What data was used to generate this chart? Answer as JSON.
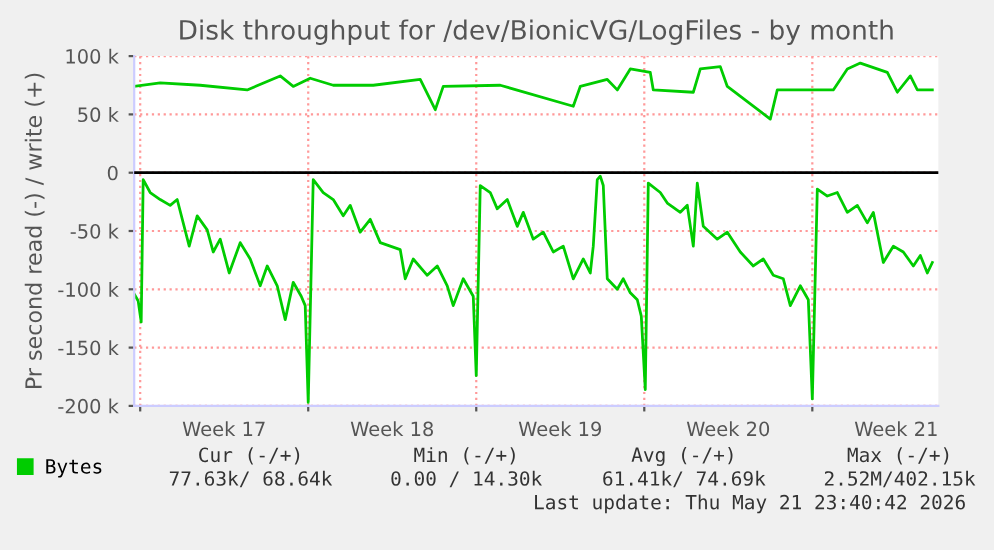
{
  "chart_data": {
    "type": "line",
    "title": "Disk throughput for /dev/BionicVG/LogFiles - by month",
    "ylabel": "Pr second read (-) / write (+)",
    "xlim": [
      "2026-04-18T18:00",
      "2026-05-22T06:00"
    ],
    "xticks": [
      {
        "value": "2026-04-19T00:00",
        "label": null
      },
      {
        "value": "2026-04-22T12:00",
        "label": "Week 17"
      },
      {
        "value": "2026-04-26T00:00",
        "label": null
      },
      {
        "value": "2026-04-29T12:00",
        "label": "Week 18"
      },
      {
        "value": "2026-05-03T00:00",
        "label": null
      },
      {
        "value": "2026-05-06T12:00",
        "label": "Week 19"
      },
      {
        "value": "2026-05-10T00:00",
        "label": null
      },
      {
        "value": "2026-05-13T12:00",
        "label": "Week 20"
      },
      {
        "value": "2026-05-17T00:00",
        "label": null
      },
      {
        "value": "2026-05-20T12:00",
        "label": "Week 21"
      }
    ],
    "ylim": [
      -200,
      100
    ],
    "yticks": [
      {
        "value": -200,
        "label": "-200 k"
      },
      {
        "value": -150,
        "label": "-150 k"
      },
      {
        "value": -100,
        "label": "-100 k"
      },
      {
        "value": -50,
        "label": "-50 k"
      },
      0,
      {
        "value": 50,
        "label": "50 k"
      },
      {
        "value": 100,
        "label": "100 k"
      }
    ],
    "grid": true,
    "legend": "bottom left",
    "ref_lines": [
      {
        "axis": "y",
        "value": 0,
        "color": "#000000"
      }
    ],
    "series": [
      {
        "name": "Bytes",
        "color": "#00cc00",
        "x": [
          "2026-04-18T18:00",
          "2026-04-19T20:00",
          "2026-04-21T12:00",
          "2026-04-23T11:00",
          "2026-04-24T20:00",
          "2026-04-25T09:00",
          "2026-04-26T02:00",
          "2026-04-27T01:00",
          "2026-04-28T17:00",
          "2026-04-30T16:00",
          "2026-05-01T07:00",
          "2026-05-01T15:00",
          "2026-05-04T00:00",
          "2026-05-07T01:00",
          "2026-05-07T08:00",
          "2026-05-08T11:00",
          "2026-05-08T21:00",
          "2026-05-09T10:00",
          "2026-05-10T06:00",
          "2026-05-10T09:00",
          "2026-05-12T01:00",
          "2026-05-12T08:00",
          "2026-05-13T04:00",
          "2026-05-13T11:00",
          "2026-05-15T06:00",
          "2026-05-15T13:00",
          "2026-05-17T21:00",
          "2026-05-18T11:00",
          "2026-05-19T00:00",
          "2026-05-20T03:00",
          "2026-05-20T13:00",
          "2026-05-21T02:00",
          "2026-05-21T09:00",
          "2026-05-22T00:00"
        ],
        "values": [
          74,
          77,
          75,
          71,
          83,
          74,
          81,
          75,
          75,
          80,
          54,
          74,
          75,
          57,
          74,
          80,
          71,
          89,
          86,
          71,
          69,
          89,
          91,
          74,
          46,
          71,
          71,
          89,
          94,
          86,
          69,
          83,
          71,
          71
        ]
      },
      {
        "color": "#00cc00",
        "x": [
          "2026-04-18T18:00",
          "2026-04-18T22:00",
          "2026-04-19T01:00",
          "2026-04-19T03:00",
          "2026-04-19T10:00",
          "2026-04-19T20:00",
          "2026-04-20T06:00",
          "2026-04-20T13:00",
          "2026-04-21T01:00",
          "2026-04-21T09:00",
          "2026-04-21T19:00",
          "2026-04-22T01:00",
          "2026-04-22T08:00",
          "2026-04-22T17:00",
          "2026-04-23T04:00",
          "2026-04-23T14:00",
          "2026-04-24T00:00",
          "2026-04-24T07:00",
          "2026-04-24T17:00",
          "2026-04-25T01:00",
          "2026-04-25T09:00",
          "2026-04-25T17:00",
          "2026-04-25T21:00",
          "2026-04-26T00:00",
          "2026-04-26T05:00",
          "2026-04-26T15:00",
          "2026-04-27T01:00",
          "2026-04-27T11:00",
          "2026-04-27T18:00",
          "2026-04-28T04:00",
          "2026-04-28T14:00",
          "2026-04-29T00:00",
          "2026-04-29T10:00",
          "2026-04-29T20:00",
          "2026-04-30T01:00",
          "2026-04-30T09:00",
          "2026-04-30T23:00",
          "2026-05-01T09:00",
          "2026-05-01T19:00",
          "2026-05-02T01:00",
          "2026-05-02T11:00",
          "2026-05-02T21:00",
          "2026-05-03T00:00",
          "2026-05-03T04:00",
          "2026-05-03T14:00",
          "2026-05-03T21:00",
          "2026-05-04T07:00",
          "2026-05-04T17:00",
          "2026-05-04T23:00",
          "2026-05-05T09:00",
          "2026-05-05T19:00",
          "2026-05-06T05:00",
          "2026-05-06T15:00",
          "2026-05-07T01:00",
          "2026-05-07T11:00",
          "2026-05-07T18:00",
          "2026-05-07T21:00",
          "2026-05-08T01:00",
          "2026-05-08T04:00",
          "2026-05-08T07:00",
          "2026-05-08T11:00",
          "2026-05-08T21:00",
          "2026-05-09T03:00",
          "2026-05-09T10:00",
          "2026-05-09T17:00",
          "2026-05-09T21:00",
          "2026-05-10T01:00",
          "2026-05-10T04:00",
          "2026-05-10T16:00",
          "2026-05-10T23:00",
          "2026-05-11T12:00",
          "2026-05-11T19:00",
          "2026-05-12T01:00",
          "2026-05-12T05:00",
          "2026-05-12T11:00",
          "2026-05-13T01:00",
          "2026-05-13T11:00",
          "2026-05-14T00:00",
          "2026-05-14T13:00",
          "2026-05-14T23:00",
          "2026-05-15T09:00",
          "2026-05-15T19:00",
          "2026-05-16T02:00",
          "2026-05-16T12:00",
          "2026-05-16T20:00",
          "2026-05-17T00:00",
          "2026-05-17T05:00",
          "2026-05-17T15:00",
          "2026-05-18T01:00",
          "2026-05-18T11:00",
          "2026-05-18T21:00",
          "2026-05-19T07:00",
          "2026-05-19T13:00",
          "2026-05-19T23:00",
          "2026-05-20T09:00",
          "2026-05-20T19:00",
          "2026-05-21T05:00",
          "2026-05-21T12:00",
          "2026-05-21T19:00",
          "2026-05-22T00:00"
        ],
        "values": [
          -104,
          -110,
          -128,
          -6,
          -17,
          -23,
          -28,
          -23,
          -63,
          -37,
          -49,
          -68,
          -57,
          -86,
          -60,
          -74,
          -97,
          -80,
          -97,
          -126,
          -94,
          -106,
          -114,
          -197,
          -6,
          -17,
          -23,
          -37,
          -28,
          -51,
          -40,
          -60,
          -63,
          -66,
          -91,
          -74,
          -88,
          -80,
          -97,
          -114,
          -91,
          -106,
          -174,
          -11,
          -17,
          -31,
          -23,
          -46,
          -34,
          -57,
          -51,
          -68,
          -63,
          -91,
          -74,
          -86,
          -63,
          -6,
          -3,
          -11,
          -91,
          -100,
          -91,
          -103,
          -109,
          -123,
          -186,
          -9,
          -17,
          -26,
          -34,
          -28,
          -63,
          -9,
          -46,
          -57,
          -51,
          -68,
          -80,
          -74,
          -88,
          -91,
          -114,
          -97,
          -109,
          -194,
          -14,
          -20,
          -17,
          -34,
          -28,
          -43,
          -34,
          -77,
          -63,
          -68,
          -80,
          -71,
          -86,
          -77
        ]
      }
    ],
    "annotations": [
      "Cur (-/+)",
      "Min (-/+)",
      "Avg (-/+)",
      "Max (-/+)",
      "77.63k/ 68.64k",
      "0.00 / 14.30k",
      "61.41k/ 74.69k",
      "2.52M/402.15k",
      "Last update: Thu May 21 23:40:42 2026"
    ]
  }
}
